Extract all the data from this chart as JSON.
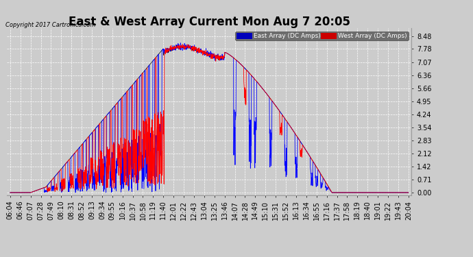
{
  "title": "East & West Array Current Mon Aug 7 20:05",
  "copyright": "Copyright 2017 Cartronics.com",
  "yticks": [
    0.0,
    0.71,
    1.42,
    2.12,
    2.83,
    3.54,
    4.24,
    4.95,
    5.66,
    6.36,
    7.07,
    7.78,
    8.48
  ],
  "ylim": [
    -0.15,
    8.9
  ],
  "background_color": "#cccccc",
  "plot_background": "#cccccc",
  "grid_color": "white",
  "east_color": "#0000ff",
  "west_color": "#ff0000",
  "black_color": "#000000",
  "legend_east_bg": "#0000bb",
  "legend_west_bg": "#cc0000",
  "title_fontsize": 12,
  "tick_fontsize": 7,
  "x_label_rotation": 90,
  "xtick_labels": [
    "06:04",
    "06:46",
    "07:07",
    "07:28",
    "07:49",
    "08:10",
    "08:31",
    "08:52",
    "09:13",
    "09:34",
    "09:55",
    "10:16",
    "10:37",
    "10:58",
    "11:19",
    "11:40",
    "12:01",
    "12:22",
    "12:43",
    "13:04",
    "13:25",
    "13:46",
    "14:07",
    "14:28",
    "14:49",
    "15:10",
    "15:31",
    "15:52",
    "16:13",
    "16:34",
    "16:55",
    "17:16",
    "17:37",
    "17:58",
    "18:19",
    "18:40",
    "19:01",
    "19:22",
    "19:43",
    "20:04"
  ]
}
